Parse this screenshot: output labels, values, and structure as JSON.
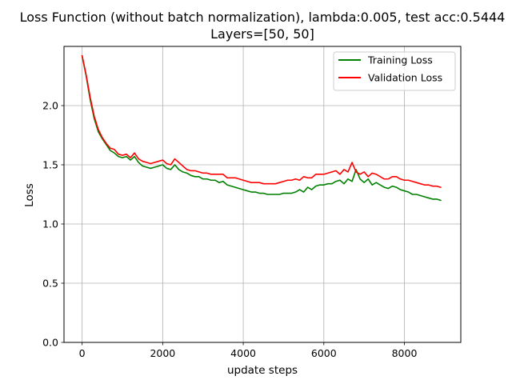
{
  "chart_data": {
    "type": "line",
    "title": "Loss Function (without batch normalization), lambda:0.005, test acc:0.5444",
    "subtitle": "Layers=[50, 50]",
    "xlabel": "update steps",
    "ylabel": "Loss",
    "xlim": [
      -450,
      9400
    ],
    "ylim": [
      0.0,
      2.5
    ],
    "x_ticks": [
      0,
      2000,
      4000,
      6000,
      8000
    ],
    "x_tick_labels": [
      "0",
      "2000",
      "4000",
      "6000",
      "8000"
    ],
    "y_ticks": [
      0.0,
      0.5,
      1.0,
      1.5,
      2.0
    ],
    "y_tick_labels": [
      "0.0",
      "0.5",
      "1.0",
      "1.5",
      "2.0"
    ],
    "grid": true,
    "legend_position": "upper right",
    "x": [
      0,
      100,
      200,
      300,
      400,
      500,
      600,
      700,
      800,
      900,
      1000,
      1100,
      1200,
      1300,
      1400,
      1500,
      1600,
      1700,
      1800,
      1900,
      2000,
      2100,
      2200,
      2300,
      2400,
      2500,
      2600,
      2700,
      2800,
      2900,
      3000,
      3100,
      3200,
      3300,
      3400,
      3500,
      3600,
      3700,
      3800,
      3900,
      4000,
      4100,
      4200,
      4300,
      4400,
      4500,
      4600,
      4700,
      4800,
      4900,
      5000,
      5100,
      5200,
      5300,
      5400,
      5500,
      5600,
      5700,
      5800,
      5900,
      6000,
      6100,
      6200,
      6300,
      6400,
      6500,
      6600,
      6700,
      6800,
      6900,
      7000,
      7100,
      7200,
      7300,
      7400,
      7500,
      7600,
      7700,
      7800,
      7900,
      8000,
      8100,
      8200,
      8300,
      8400,
      8500,
      8600,
      8700,
      8800,
      8900
    ],
    "series": [
      {
        "name": "Training Loss",
        "color": "#008000",
        "values": [
          2.42,
          2.25,
          2.05,
          1.89,
          1.78,
          1.72,
          1.67,
          1.62,
          1.6,
          1.57,
          1.56,
          1.57,
          1.54,
          1.57,
          1.52,
          1.49,
          1.48,
          1.47,
          1.48,
          1.49,
          1.5,
          1.47,
          1.46,
          1.5,
          1.46,
          1.44,
          1.43,
          1.41,
          1.4,
          1.4,
          1.38,
          1.38,
          1.37,
          1.37,
          1.35,
          1.36,
          1.33,
          1.32,
          1.31,
          1.3,
          1.29,
          1.28,
          1.27,
          1.27,
          1.26,
          1.26,
          1.25,
          1.25,
          1.25,
          1.25,
          1.26,
          1.26,
          1.26,
          1.27,
          1.29,
          1.27,
          1.31,
          1.29,
          1.32,
          1.33,
          1.33,
          1.34,
          1.34,
          1.36,
          1.37,
          1.34,
          1.38,
          1.36,
          1.46,
          1.38,
          1.35,
          1.38,
          1.33,
          1.35,
          1.33,
          1.31,
          1.3,
          1.32,
          1.31,
          1.29,
          1.28,
          1.27,
          1.25,
          1.25,
          1.24,
          1.23,
          1.22,
          1.21,
          1.21,
          1.2
        ]
      },
      {
        "name": "Validation Loss",
        "color": "#ff0000",
        "values": [
          2.42,
          2.26,
          2.07,
          1.91,
          1.8,
          1.73,
          1.68,
          1.64,
          1.63,
          1.59,
          1.58,
          1.59,
          1.56,
          1.6,
          1.55,
          1.53,
          1.52,
          1.51,
          1.52,
          1.53,
          1.54,
          1.51,
          1.5,
          1.55,
          1.52,
          1.49,
          1.46,
          1.45,
          1.45,
          1.44,
          1.43,
          1.43,
          1.42,
          1.42,
          1.42,
          1.42,
          1.39,
          1.39,
          1.39,
          1.38,
          1.37,
          1.36,
          1.35,
          1.35,
          1.35,
          1.34,
          1.34,
          1.34,
          1.34,
          1.35,
          1.36,
          1.37,
          1.37,
          1.38,
          1.37,
          1.4,
          1.39,
          1.39,
          1.42,
          1.42,
          1.42,
          1.43,
          1.44,
          1.45,
          1.42,
          1.46,
          1.44,
          1.52,
          1.44,
          1.42,
          1.44,
          1.4,
          1.43,
          1.42,
          1.4,
          1.38,
          1.38,
          1.4,
          1.4,
          1.38,
          1.37,
          1.37,
          1.36,
          1.35,
          1.34,
          1.33,
          1.33,
          1.32,
          1.32,
          1.31
        ]
      }
    ]
  }
}
